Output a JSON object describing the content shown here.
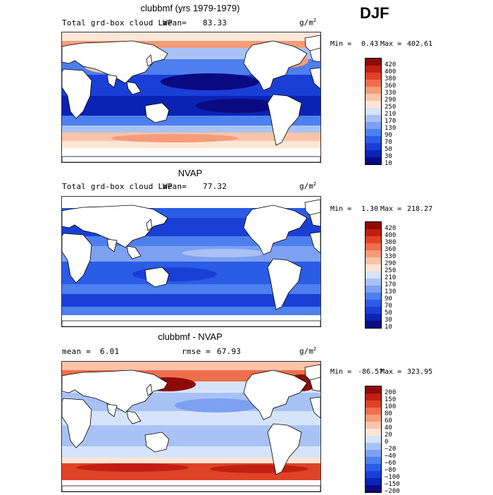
{
  "season": "DJF",
  "units_base": "g/m",
  "units_exp": "2",
  "panels": [
    {
      "title": "clubbmf (yrs 1979-1979)",
      "left_label": "Total grd-box cloud LWP",
      "mean_label": "mean=",
      "mean_value": "83.33",
      "min_label": "Min =",
      "min_value": "0.43",
      "max_label": "Max =",
      "max_value": "402.61",
      "colorbar_levels": [
        "420",
        "400",
        "380",
        "360",
        "330",
        "290",
        "250",
        "210",
        "170",
        "130",
        "90",
        "70",
        "50",
        "30",
        "10"
      ]
    },
    {
      "title": "NVAP",
      "left_label": "Total grd-box cloud LWP",
      "mean_label": "mean=",
      "mean_value": "77.32",
      "min_label": "Min =",
      "min_value": "1.30",
      "max_label": "Max =",
      "max_value": "218.27",
      "colorbar_levels": [
        "420",
        "400",
        "380",
        "360",
        "330",
        "290",
        "250",
        "210",
        "170",
        "130",
        "90",
        "70",
        "50",
        "30",
        "10"
      ]
    },
    {
      "title": "clubbmf - NVAP",
      "left_label": "mean =",
      "left_value": "6.01",
      "rmse_label": "rmse =",
      "rmse_value": "67.93",
      "min_label": "Min =",
      "min_value": "-86.57",
      "max_label": "Max =",
      "max_value": "323.95",
      "colorbar_levels": [
        "200",
        "150",
        "100",
        "80",
        "60",
        "40",
        "20",
        "0",
        "−20",
        "−40",
        "−60",
        "−80",
        "−100",
        "−150",
        "−200"
      ]
    }
  ],
  "chart_data": [
    {
      "type": "heatmap",
      "title": "clubbmf (yrs 1979-1979)",
      "subtitle": "Total grd-box cloud LWP",
      "mean": 83.33,
      "min": 0.43,
      "max": 402.61,
      "units": "g/m^2",
      "contour_levels": [
        10,
        30,
        50,
        70,
        90,
        130,
        170,
        210,
        250,
        290,
        330,
        360,
        380,
        400,
        420
      ],
      "color_scale": [
        "#0a0a82",
        "#0b23b4",
        "#1a3fd6",
        "#2b5ce6",
        "#4d7fee",
        "#7da0f2",
        "#a9c2f6",
        "#d6e4fb",
        "#fde6d6",
        "#f9c4a8",
        "#f59c7a",
        "#ee6f4c",
        "#df4326",
        "#c21e12",
        "#8e0a08"
      ]
    },
    {
      "type": "heatmap",
      "title": "NVAP",
      "subtitle": "Total grd-box cloud LWP",
      "mean": 77.32,
      "min": 1.3,
      "max": 218.27,
      "units": "g/m^2",
      "contour_levels": [
        10,
        30,
        50,
        70,
        90,
        130,
        170,
        210,
        250,
        290,
        330,
        360,
        380,
        400,
        420
      ],
      "color_scale": [
        "#0a0a82",
        "#0b23b4",
        "#1a3fd6",
        "#2b5ce6",
        "#4d7fee",
        "#7da0f2",
        "#a9c2f6",
        "#d6e4fb",
        "#fde6d6",
        "#f9c4a8",
        "#f59c7a",
        "#ee6f4c",
        "#df4326",
        "#c21e12",
        "#8e0a08"
      ]
    },
    {
      "type": "heatmap",
      "title": "clubbmf - NVAP",
      "mean": 6.01,
      "rmse": 67.93,
      "min": -86.57,
      "max": 323.95,
      "units": "g/m^2",
      "contour_levels": [
        -200,
        -150,
        -100,
        -80,
        -60,
        -40,
        -20,
        0,
        20,
        40,
        60,
        80,
        100,
        150,
        200
      ],
      "color_scale": [
        "#0a0a82",
        "#0b23b4",
        "#1a3fd6",
        "#2b5ce6",
        "#4d7fee",
        "#7da0f2",
        "#a9c2f6",
        "#d6e4fb",
        "#fde6d6",
        "#f9c4a8",
        "#f59c7a",
        "#ee6f4c",
        "#df4326",
        "#c21e12",
        "#8e0a08"
      ]
    }
  ]
}
